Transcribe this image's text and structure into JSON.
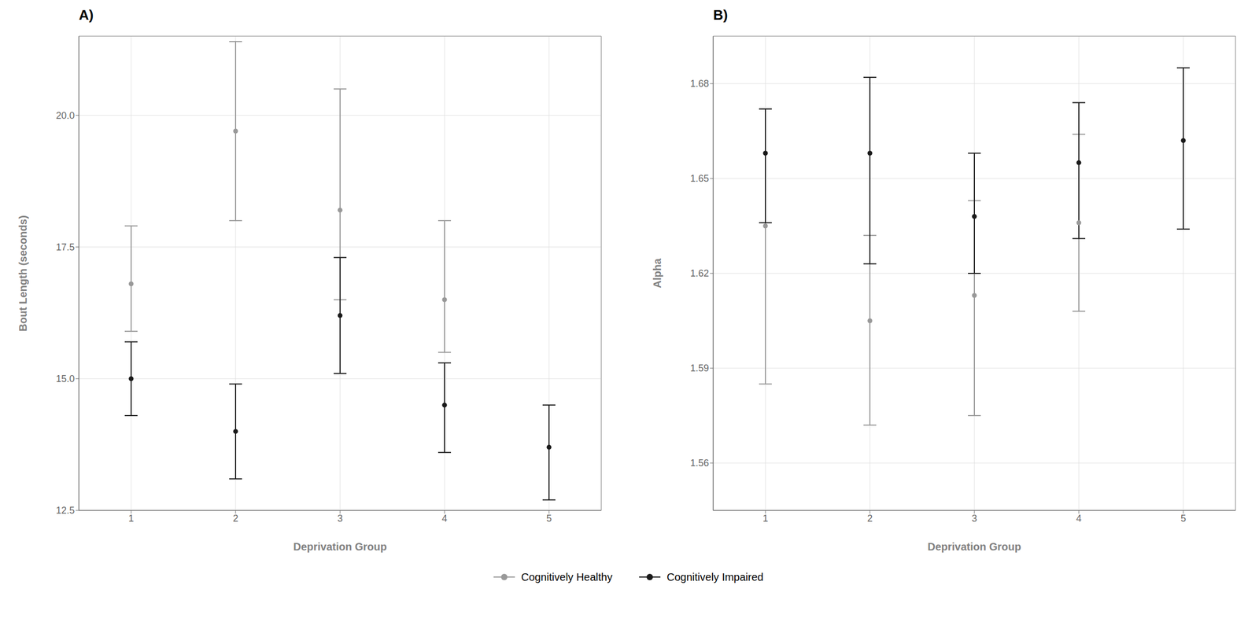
{
  "chart_data": [
    {
      "type": "scatter",
      "title": "A)",
      "xlabel": "Deprivation Group",
      "ylabel": "Bout Length (seconds)",
      "x": [
        1,
        2,
        3,
        4,
        5
      ],
      "series": [
        {
          "name": "Cognitively Healthy",
          "color": "#999999",
          "marker": "circle",
          "values": [
            16.8,
            19.7,
            18.2,
            16.5,
            null
          ],
          "ci_low": [
            15.9,
            18.0,
            16.5,
            15.5,
            null
          ],
          "ci_high": [
            17.9,
            21.4,
            20.5,
            18.0,
            null
          ]
        },
        {
          "name": "Cognitively Impaired",
          "color": "#1a1a1a",
          "marker": "circle",
          "values": [
            15.0,
            14.0,
            16.2,
            14.5,
            13.7
          ],
          "ci_low": [
            14.3,
            13.1,
            15.1,
            13.6,
            12.7
          ],
          "ci_high": [
            15.7,
            14.9,
            17.3,
            15.3,
            14.5
          ]
        }
      ],
      "xlim": [
        0.5,
        5.5
      ],
      "xticks": [
        1,
        2,
        3,
        4,
        5
      ],
      "ylim": [
        12.5,
        21.5
      ],
      "yticks": [
        12.5,
        {
          "value": 15.0,
          "label": "15.0"
        },
        17.5,
        {
          "value": 20.0,
          "label": "20.0"
        }
      ],
      "grid": true,
      "legend": "bottom"
    },
    {
      "type": "scatter",
      "title": "B)",
      "xlabel": "Deprivation Group",
      "ylabel": "Alpha",
      "x": [
        1,
        2,
        3,
        4,
        5
      ],
      "series": [
        {
          "name": "Cognitively Healthy",
          "color": "#999999",
          "marker": "circle",
          "values": [
            1.635,
            1.605,
            1.613,
            1.636,
            null
          ],
          "ci_low": [
            1.585,
            1.572,
            1.575,
            1.608,
            null
          ],
          "ci_high": [
            1.672,
            1.632,
            1.643,
            1.664,
            null
          ]
        },
        {
          "name": "Cognitively Impaired",
          "color": "#1a1a1a",
          "marker": "circle",
          "values": [
            1.658,
            1.658,
            1.638,
            1.655,
            1.662
          ],
          "ci_low": [
            1.636,
            1.623,
            1.62,
            1.631,
            1.634
          ],
          "ci_high": [
            1.672,
            1.682,
            1.658,
            1.674,
            1.685
          ]
        }
      ],
      "xlim": [
        0.5,
        5.5
      ],
      "xticks": [
        1,
        2,
        3,
        4,
        5
      ],
      "ylim": [
        1.545,
        1.695
      ],
      "yticks": [
        1.56,
        1.59,
        1.62,
        1.65,
        1.68
      ],
      "grid": true,
      "legend": "bottom"
    }
  ]
}
